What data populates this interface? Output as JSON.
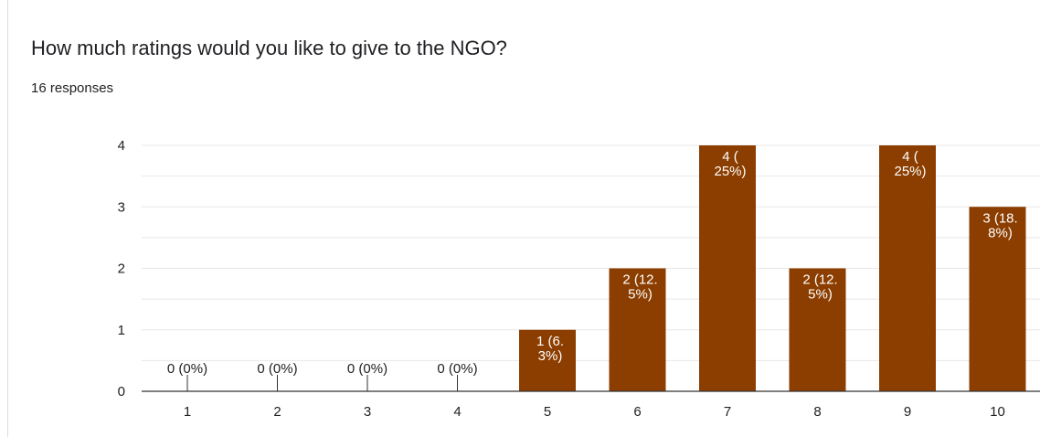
{
  "question": {
    "title": "How much ratings would you like to give to the NGO?",
    "responses": "16 responses"
  },
  "colors": {
    "bar": "#8b3e00",
    "grid": "#e8e8e8",
    "axis": "#333333",
    "label_inside": "#ffffff",
    "label_outside": "#202124"
  },
  "chart_data": {
    "type": "bar",
    "title": "",
    "xlabel": "",
    "ylabel": "",
    "categories": [
      "1",
      "2",
      "3",
      "4",
      "5",
      "6",
      "7",
      "8",
      "9",
      "10"
    ],
    "values": [
      0,
      0,
      0,
      0,
      1,
      2,
      4,
      2,
      4,
      3
    ],
    "data_labels": [
      [
        "0 (0%)"
      ],
      [
        "0 (0%)"
      ],
      [
        "0 (0%)"
      ],
      [
        "0 (0%)"
      ],
      [
        "1 (6.",
        "3%)"
      ],
      [
        "2 (12.",
        "5%)"
      ],
      [
        "4 (",
        "25%)"
      ],
      [
        "2 (12.",
        "5%)"
      ],
      [
        "4 (",
        "25%)"
      ],
      [
        "3 (18.",
        "8%)"
      ]
    ],
    "ylim": [
      0,
      4
    ],
    "yticks": [
      "0",
      "1",
      "2",
      "3",
      "4"
    ],
    "grid": true,
    "legend": "none"
  }
}
